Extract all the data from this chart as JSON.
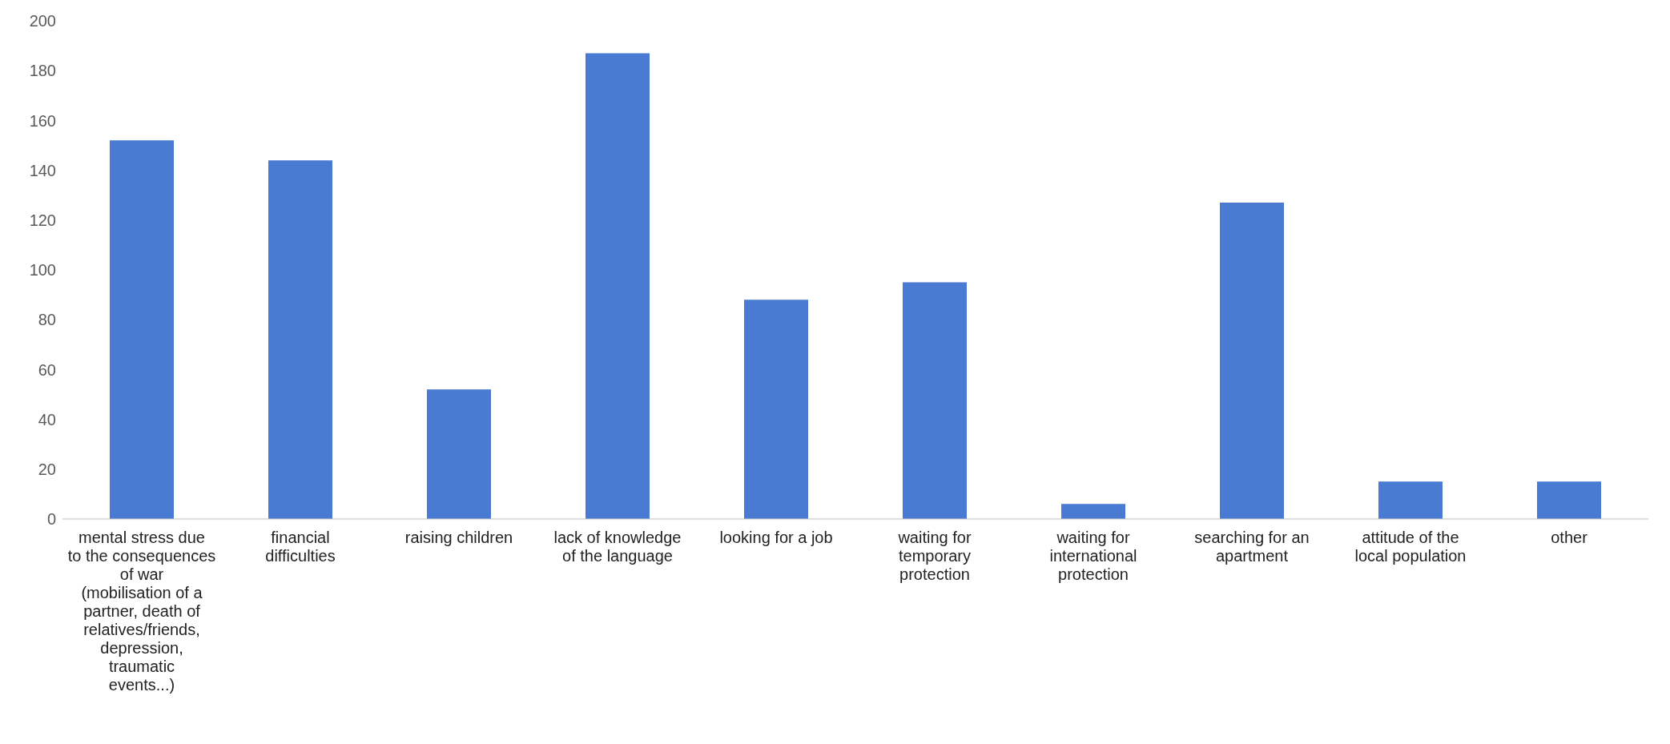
{
  "chart_data": {
    "type": "bar",
    "categories": [
      "mental stress due to the consequences of war (mobilisation of a partner, death of relatives/friends, depression, traumatic events...)",
      "financial difficulties",
      "raising children",
      "lack of knowledge of the language",
      "looking for a job",
      "waiting for temporary protection",
      "waiting for international protection",
      "searching for an apartment",
      "attitude of the local population",
      "other"
    ],
    "values": [
      152,
      144,
      52,
      187,
      88,
      95,
      6,
      127,
      15,
      15
    ],
    "color": "#4a7bd2",
    "ylim": [
      0,
      200
    ],
    "yticks": [
      0,
      20,
      40,
      60,
      80,
      100,
      120,
      140,
      160,
      180,
      200
    ],
    "grid": false,
    "legend": false
  }
}
